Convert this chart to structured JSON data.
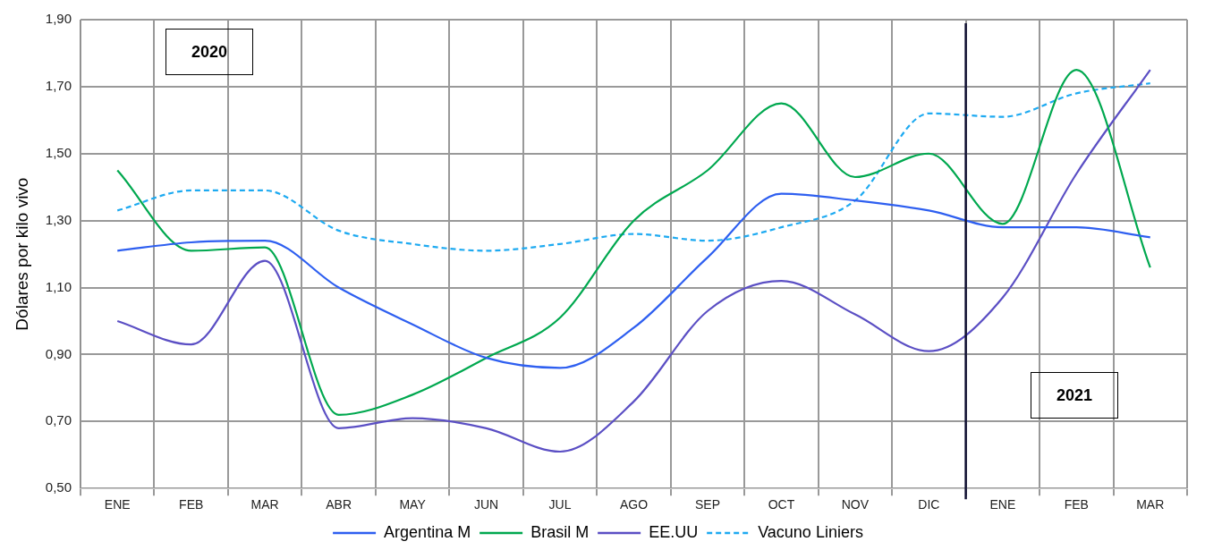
{
  "chart_data": {
    "type": "line",
    "ylabel": "Dólares por kilo vivo",
    "categories": [
      "ENE",
      "FEB",
      "MAR",
      "ABR",
      "MAY",
      "JUN",
      "JUL",
      "AGO",
      "SEP",
      "OCT",
      "NOV",
      "DIC",
      "ENE",
      "FEB",
      "MAR"
    ],
    "series": [
      {
        "name": "Argentina M",
        "color": "#2e5ff0",
        "line_style": "solid",
        "values": [
          1.21,
          1.235,
          1.24,
          1.1,
          0.99,
          0.89,
          0.86,
          0.98,
          1.19,
          1.38,
          1.36,
          1.33,
          1.28,
          1.28,
          1.25
        ]
      },
      {
        "name": "Brasil M",
        "color": "#00a84f",
        "line_style": "solid",
        "values": [
          1.45,
          1.21,
          1.22,
          0.72,
          0.78,
          0.89,
          1.01,
          1.3,
          1.45,
          1.65,
          1.43,
          1.5,
          1.29,
          1.75,
          1.16
        ]
      },
      {
        "name": "EE.UU",
        "color": "#5b4fc4",
        "line_style": "solid",
        "values": [
          1.0,
          0.93,
          1.18,
          0.68,
          0.71,
          0.68,
          0.61,
          0.76,
          1.03,
          1.12,
          1.02,
          0.91,
          1.07,
          1.44,
          1.75
        ]
      },
      {
        "name": "Vacuno Liniers",
        "color": "#1eaaf1",
        "line_style": "dashed",
        "values": [
          1.33,
          1.39,
          1.39,
          1.27,
          1.23,
          1.21,
          1.23,
          1.26,
          1.24,
          1.28,
          1.36,
          1.62,
          1.61,
          1.68,
          1.71
        ]
      }
    ],
    "ylim": [
      0.5,
      1.9
    ],
    "yticks": [
      {
        "value": 0.5,
        "label": "0,50"
      },
      {
        "value": 0.7,
        "label": "0,70"
      },
      {
        "value": 0.9,
        "label": "0,90"
      },
      {
        "value": 1.1,
        "label": "1,10"
      },
      {
        "value": 1.3,
        "label": "1,30"
      },
      {
        "value": 1.5,
        "label": "1,50"
      },
      {
        "value": 1.7,
        "label": "1,70"
      },
      {
        "value": 1.9,
        "label": "1,90"
      }
    ],
    "ref_lines": [
      {
        "axis": "x",
        "value": "DIC",
        "color": "#111133"
      }
    ],
    "annotations": [
      "2020",
      "2021"
    ],
    "grid": true,
    "legend": "bottom",
    "marker": "none"
  }
}
